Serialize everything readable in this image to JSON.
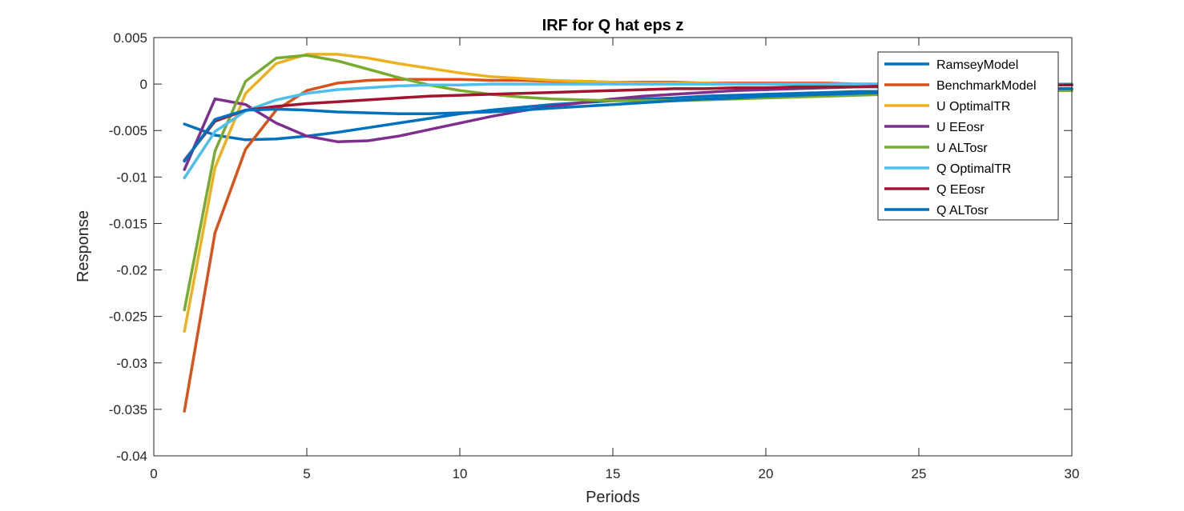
{
  "chart_data": {
    "type": "line",
    "title": "IRF for Q hat eps z",
    "xlabel": "Periods",
    "ylabel": "Response",
    "xlim": [
      0,
      30
    ],
    "ylim": [
      -0.04,
      0.005
    ],
    "xticks": [
      0,
      5,
      10,
      15,
      20,
      25,
      30
    ],
    "xtick_labels": [
      "0",
      "5",
      "10",
      "15",
      "20",
      "25",
      "30"
    ],
    "yticks": [
      0.005,
      0,
      -0.005,
      -0.01,
      -0.015,
      -0.02,
      -0.025,
      -0.03,
      -0.035,
      -0.04
    ],
    "ytick_labels": [
      "0.005",
      "0",
      "-0.005",
      "-0.01",
      "-0.015",
      "-0.02",
      "-0.025",
      "-0.03",
      "-0.035",
      "-0.04"
    ],
    "grid": false,
    "legend_position": "top-right",
    "x": [
      1,
      2,
      3,
      4,
      5,
      6,
      7,
      8,
      9,
      10,
      11,
      12,
      13,
      14,
      15,
      16,
      17,
      18,
      19,
      20,
      21,
      22,
      23,
      24,
      25,
      26,
      27,
      28,
      29,
      30
    ],
    "series": [
      {
        "name": "RamseyModel",
        "color": "#0072BD",
        "values": [
          -0.0043,
          -0.0055,
          -0.006,
          -0.0059,
          -0.0056,
          -0.0052,
          -0.0047,
          -0.0042,
          -0.0037,
          -0.0032,
          -0.0028,
          -0.0025,
          -0.0022,
          -0.002,
          -0.0018,
          -0.0016,
          -0.0015,
          -0.0013,
          -0.0012,
          -0.0011,
          -0.001,
          -0.0009,
          -0.0008,
          -0.0008,
          -0.0007,
          -0.0006,
          -0.0006,
          -0.0005,
          -0.0005,
          -0.0005
        ]
      },
      {
        "name": "BenchmarkModel",
        "color": "#D95319",
        "values": [
          -0.0352,
          -0.016,
          -0.007,
          -0.0028,
          -0.0007,
          0.0001,
          0.0004,
          0.0005,
          0.0005,
          0.0005,
          0.0004,
          0.0004,
          0.0003,
          0.0003,
          0.0002,
          0.0002,
          0.0002,
          0.0001,
          0.0001,
          0.0001,
          0.0001,
          0.0001,
          0.0,
          0.0,
          0.0,
          0.0,
          0.0,
          0.0,
          0.0,
          0.0
        ]
      },
      {
        "name": "U OptimalTR",
        "color": "#EDB120",
        "values": [
          -0.0266,
          -0.009,
          -0.001,
          0.0022,
          0.0032,
          0.0032,
          0.0028,
          0.0022,
          0.0017,
          0.0012,
          0.0008,
          0.0006,
          0.0004,
          0.0003,
          0.0002,
          0.0001,
          0.0001,
          0.0001,
          0.0,
          0.0,
          0.0,
          0.0,
          0.0,
          0.0,
          0.0,
          0.0,
          0.0,
          0.0,
          0.0,
          0.0
        ]
      },
      {
        "name": "U EEosr",
        "color": "#7E2F8E",
        "values": [
          -0.0092,
          -0.0016,
          -0.0022,
          -0.0042,
          -0.0056,
          -0.0062,
          -0.0061,
          -0.0056,
          -0.0049,
          -0.0042,
          -0.0035,
          -0.0029,
          -0.0024,
          -0.002,
          -0.0016,
          -0.0013,
          -0.0011,
          -0.0009,
          -0.0007,
          -0.0006,
          -0.0005,
          -0.0004,
          -0.0003,
          -0.0003,
          -0.0002,
          -0.0002,
          -0.0002,
          -0.0001,
          -0.0001,
          -0.0001
        ]
      },
      {
        "name": "U ALTosr",
        "color": "#77AC30",
        "values": [
          -0.0243,
          -0.0072,
          0.0003,
          0.0028,
          0.0031,
          0.0025,
          0.0016,
          0.0007,
          -0.0001,
          -0.0007,
          -0.0011,
          -0.0014,
          -0.0016,
          -0.0017,
          -0.0018,
          -0.0018,
          -0.0018,
          -0.0017,
          -0.0016,
          -0.0015,
          -0.0014,
          -0.0013,
          -0.0012,
          -0.0011,
          -0.001,
          -0.0009,
          -0.0008,
          -0.0008,
          -0.0007,
          -0.0007
        ]
      },
      {
        "name": "Q OptimalTR",
        "color": "#4DBEEE",
        "values": [
          -0.0101,
          -0.0051,
          -0.0029,
          -0.0017,
          -0.001,
          -0.0006,
          -0.0004,
          -0.0002,
          -0.0001,
          -0.0001,
          0.0,
          0.0,
          0.0,
          0.0,
          0.0,
          0.0,
          0.0,
          0.0,
          0.0,
          0.0,
          0.0,
          0.0,
          0.0,
          0.0,
          0.0,
          0.0,
          0.0,
          0.0,
          0.0,
          0.0
        ]
      },
      {
        "name": "Q EEosr",
        "color": "#A2142F",
        "values": [
          -0.0082,
          -0.004,
          -0.0028,
          -0.0024,
          -0.0021,
          -0.0019,
          -0.0017,
          -0.0015,
          -0.0013,
          -0.0012,
          -0.0011,
          -0.001,
          -0.0009,
          -0.0008,
          -0.0007,
          -0.0006,
          -0.0005,
          -0.0005,
          -0.0004,
          -0.0004,
          -0.0003,
          -0.0003,
          -0.0003,
          -0.0002,
          -0.0002,
          -0.0002,
          -0.0002,
          -0.0002,
          -0.0001,
          -0.0001
        ]
      },
      {
        "name": "Q ALTosr",
        "color": "#0072BD",
        "values": [
          -0.0083,
          -0.0038,
          -0.0028,
          -0.0027,
          -0.0028,
          -0.003,
          -0.0031,
          -0.0032,
          -0.0032,
          -0.0031,
          -0.003,
          -0.0028,
          -0.0026,
          -0.0024,
          -0.0022,
          -0.002,
          -0.0018,
          -0.0016,
          -0.0015,
          -0.0013,
          -0.0012,
          -0.0011,
          -0.001,
          -0.0009,
          -0.0008,
          -0.0007,
          -0.0006,
          -0.0006,
          -0.0005,
          -0.0005
        ]
      }
    ]
  }
}
